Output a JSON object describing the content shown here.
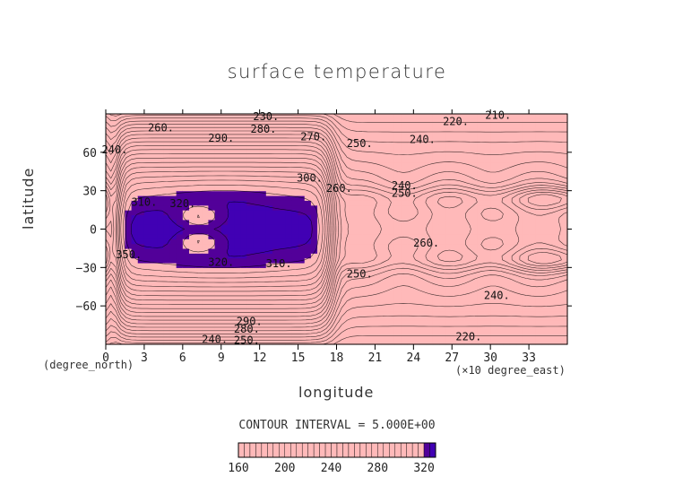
{
  "chart_data": {
    "type": "heatmap",
    "title": "surface temperature",
    "xlabel": "longitude",
    "ylabel": "latitude",
    "x_unit": "(×10 degree_east)",
    "y_unit": "(degree_north)",
    "x_ticks": [
      0,
      3,
      6,
      9,
      12,
      15,
      18,
      21,
      24,
      27,
      30,
      33
    ],
    "y_ticks": [
      60,
      30,
      0,
      -30,
      -60
    ],
    "xlim": [
      0,
      36
    ],
    "ylim": [
      -90,
      90
    ],
    "contour_interval_label": "CONTOUR INTERVAL = 5.000E+00",
    "colorbar_ticks": [
      160,
      200,
      240,
      280,
      320
    ],
    "colorbar_range": [
      160,
      330
    ],
    "contour_labels": [
      {
        "text": "230.",
        "x": 12.5,
        "y": 88
      },
      {
        "text": "260.",
        "x": 4.3,
        "y": 79
      },
      {
        "text": "280.",
        "x": 12.3,
        "y": 78
      },
      {
        "text": "290.",
        "x": 9.0,
        "y": 71
      },
      {
        "text": "270.",
        "x": 16.2,
        "y": 72
      },
      {
        "text": "240.",
        "x": 0.7,
        "y": 62
      },
      {
        "text": "250.",
        "x": 19.8,
        "y": 67
      },
      {
        "text": "240.",
        "x": 24.7,
        "y": 70
      },
      {
        "text": "220.",
        "x": 27.3,
        "y": 84
      },
      {
        "text": "210.",
        "x": 30.6,
        "y": 89
      },
      {
        "text": "300.",
        "x": 15.9,
        "y": 40
      },
      {
        "text": "310.",
        "x": 3.0,
        "y": 21
      },
      {
        "text": "320.",
        "x": 6.0,
        "y": 20
      },
      {
        "text": "260.",
        "x": 18.2,
        "y": 32
      },
      {
        "text": "240.",
        "x": 23.3,
        "y": 34
      },
      {
        "text": "250.",
        "x": 23.3,
        "y": 28
      },
      {
        "text": "260.",
        "x": 25.0,
        "y": -11
      },
      {
        "text": "350.",
        "x": 1.8,
        "y": -20
      },
      {
        "text": "320.",
        "x": 9.0,
        "y": -26
      },
      {
        "text": "310.",
        "x": 13.5,
        "y": -27
      },
      {
        "text": "250.",
        "x": 19.8,
        "y": -35
      },
      {
        "text": "240.",
        "x": 30.5,
        "y": -52
      },
      {
        "text": "290.",
        "x": 11.2,
        "y": -72
      },
      {
        "text": "280.",
        "x": 11.0,
        "y": -78
      },
      {
        "text": "250.",
        "x": 11.0,
        "y": -87
      },
      {
        "text": "240.",
        "x": 8.5,
        "y": -86
      },
      {
        "text": "220.",
        "x": 28.3,
        "y": -84
      }
    ]
  }
}
